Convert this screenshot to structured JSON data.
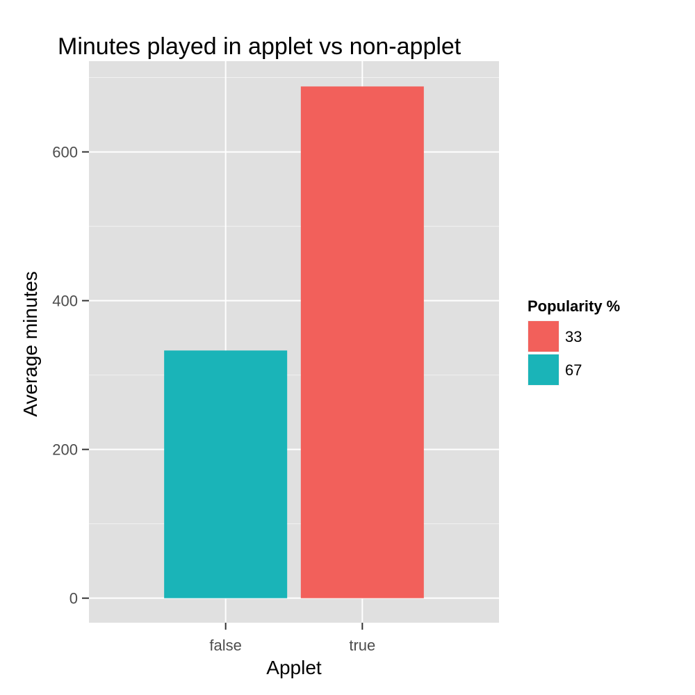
{
  "chart_data": {
    "type": "bar",
    "title": "Minutes played in applet vs non-applet",
    "xlabel": "Applet",
    "ylabel": "Average minutes",
    "categories": [
      "false",
      "true"
    ],
    "values": [
      333,
      688
    ],
    "bar_legend_keys": [
      "67",
      "33"
    ],
    "ylim": [
      -33,
      722
    ],
    "yticks": [
      0,
      200,
      400,
      600
    ],
    "ytick_labels": [
      "0",
      "200",
      "400",
      "600"
    ],
    "grid": true,
    "legend": {
      "title": "Popularity %",
      "position": "right",
      "entries": [
        {
          "label": "33",
          "color": "#f2605b"
        },
        {
          "label": "67",
          "color": "#1ab4b8"
        }
      ]
    },
    "panel_background": "#e0e0e0",
    "grid_color": "#ffffff"
  }
}
